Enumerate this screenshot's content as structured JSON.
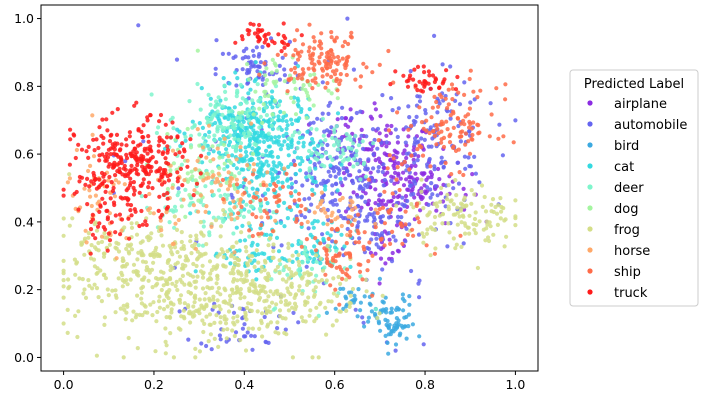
{
  "chart_data": {
    "type": "scatter",
    "title": "",
    "xlabel": "",
    "ylabel": "",
    "xlim": [
      -0.05,
      1.05
    ],
    "ylim": [
      -0.04,
      1.04
    ],
    "xticks": [
      "0.0",
      "0.2",
      "0.4",
      "0.6",
      "0.8",
      "1.0"
    ],
    "yticks": [
      "0.0",
      "0.2",
      "0.4",
      "0.6",
      "0.8",
      "1.0"
    ],
    "grid": false,
    "legend": {
      "title": "Predicted Label",
      "placement": "right-outside"
    },
    "series": [
      {
        "name": "airplane",
        "color": "#8b2be2",
        "clusters": [
          [
            0.72,
            0.55,
            0.05,
            0.08,
            160
          ],
          [
            0.8,
            0.5,
            0.05,
            0.05,
            60
          ],
          [
            0.63,
            0.68,
            0.03,
            0.03,
            25
          ],
          [
            0.72,
            0.32,
            0.02,
            0.03,
            20
          ]
        ]
      },
      {
        "name": "automobile",
        "color": "#6464f0",
        "clusters": [
          [
            0.6,
            0.55,
            0.06,
            0.08,
            160
          ],
          [
            0.82,
            0.62,
            0.06,
            0.1,
            140
          ],
          [
            0.42,
            0.85,
            0.04,
            0.04,
            60
          ],
          [
            0.68,
            0.4,
            0.05,
            0.06,
            70
          ],
          [
            0.4,
            0.1,
            0.05,
            0.04,
            40
          ],
          [
            0.5,
            0.5,
            0.2,
            0.25,
            90
          ]
        ]
      },
      {
        "name": "bird",
        "color": "#3ba9e0",
        "clusters": [
          [
            0.73,
            0.1,
            0.025,
            0.04,
            70
          ],
          [
            0.65,
            0.17,
            0.03,
            0.03,
            30
          ]
        ]
      },
      {
        "name": "cat",
        "color": "#33d9e0",
        "clusters": [
          [
            0.45,
            0.6,
            0.06,
            0.1,
            340
          ],
          [
            0.38,
            0.67,
            0.05,
            0.05,
            120
          ],
          [
            0.56,
            0.34,
            0.04,
            0.04,
            60
          ],
          [
            0.42,
            0.3,
            0.05,
            0.03,
            40
          ]
        ]
      },
      {
        "name": "deer",
        "color": "#7ff5cc",
        "clusters": [
          [
            0.35,
            0.68,
            0.06,
            0.06,
            130
          ],
          [
            0.33,
            0.45,
            0.06,
            0.05,
            80
          ],
          [
            0.6,
            0.62,
            0.05,
            0.05,
            60
          ],
          [
            0.55,
            0.25,
            0.05,
            0.05,
            40
          ]
        ]
      },
      {
        "name": "dog",
        "color": "#a4f5a0",
        "clusters": [
          [
            0.5,
            0.8,
            0.06,
            0.05,
            60
          ],
          [
            0.3,
            0.55,
            0.05,
            0.05,
            60
          ]
        ]
      },
      {
        "name": "frog",
        "color": "#d4de88",
        "clusters": [
          [
            0.27,
            0.22,
            0.13,
            0.09,
            520
          ],
          [
            0.5,
            0.2,
            0.08,
            0.07,
            140
          ],
          [
            0.88,
            0.42,
            0.06,
            0.05,
            120
          ],
          [
            0.12,
            0.3,
            0.05,
            0.05,
            60
          ]
        ]
      },
      {
        "name": "horse",
        "color": "#ffa868",
        "clusters": [
          [
            0.35,
            0.5,
            0.08,
            0.07,
            90
          ],
          [
            0.08,
            0.45,
            0.04,
            0.08,
            50
          ],
          [
            0.6,
            0.42,
            0.04,
            0.04,
            30
          ]
        ]
      },
      {
        "name": "ship",
        "color": "#ff6b48",
        "clusters": [
          [
            0.57,
            0.88,
            0.05,
            0.04,
            130
          ],
          [
            0.86,
            0.68,
            0.05,
            0.06,
            110
          ],
          [
            0.62,
            0.3,
            0.04,
            0.06,
            70
          ],
          [
            0.45,
            0.45,
            0.06,
            0.05,
            50
          ],
          [
            0.75,
            0.45,
            0.03,
            0.1,
            40
          ]
        ]
      },
      {
        "name": "truck",
        "color": "#ff1a1a",
        "clusters": [
          [
            0.15,
            0.56,
            0.06,
            0.07,
            300
          ],
          [
            0.45,
            0.95,
            0.04,
            0.02,
            40
          ],
          [
            0.8,
            0.82,
            0.03,
            0.02,
            40
          ],
          [
            0.1,
            0.4,
            0.03,
            0.04,
            30
          ]
        ]
      }
    ]
  }
}
